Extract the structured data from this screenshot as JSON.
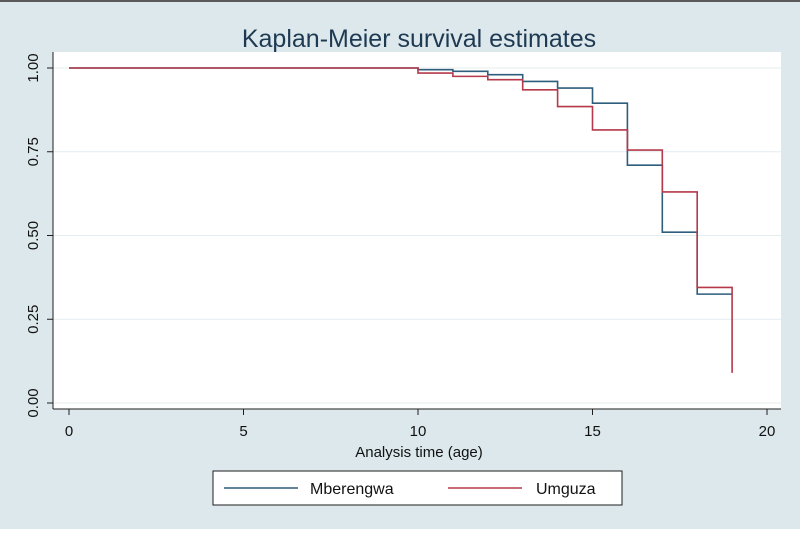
{
  "chart_data": {
    "type": "line",
    "step": true,
    "title": "Kaplan-Meier survival estimates",
    "xlabel": "Analysis time (age)",
    "ylabel": "",
    "xlim": [
      0,
      20
    ],
    "ylim": [
      0,
      1
    ],
    "x_ticks": [
      0,
      5,
      10,
      15,
      20
    ],
    "x_tick_labels": [
      "0",
      "5",
      "10",
      "15",
      "20"
    ],
    "y_ticks": [
      0,
      0.25,
      0.5,
      0.75,
      1.0
    ],
    "y_tick_labels": [
      "0.00",
      "0.25",
      "0.50",
      "0.75",
      "1.00"
    ],
    "grid": true,
    "legend_position": "bottom",
    "series": [
      {
        "name": "Mberengwa",
        "color": "#2f5d7c",
        "x": [
          0,
          10,
          11,
          12,
          13,
          14,
          15,
          16,
          17,
          18,
          19
        ],
        "y": [
          1.0,
          0.995,
          0.99,
          0.98,
          0.96,
          0.94,
          0.895,
          0.71,
          0.51,
          0.325,
          0.325
        ]
      },
      {
        "name": "Umguza",
        "color": "#b5394a",
        "x": [
          0,
          10,
          11,
          12,
          13,
          14,
          15,
          16,
          17,
          18,
          19
        ],
        "y": [
          1.0,
          0.985,
          0.975,
          0.965,
          0.935,
          0.885,
          0.815,
          0.755,
          0.63,
          0.345,
          0.09
        ]
      }
    ],
    "background_color": "#dde8ec",
    "plot_background_color": "#ffffff",
    "gridline_color": "#e4ecef",
    "border_color": "#1e1e1e"
  }
}
